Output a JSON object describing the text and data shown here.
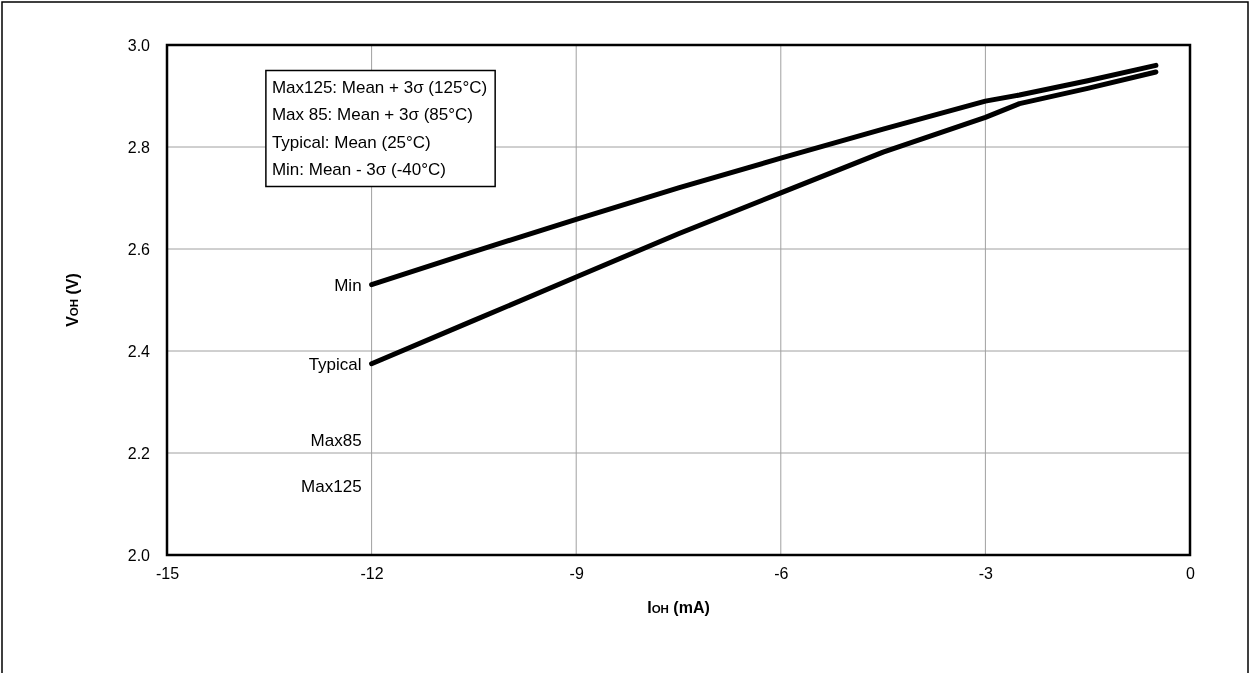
{
  "chart_data": {
    "type": "line",
    "xlabel": "I$_{OH}$ (mA)",
    "ylabel": "V$_{OH}$ (V)",
    "xlim": [
      -15,
      0
    ],
    "xticks": [
      -15,
      -12,
      -9,
      -6,
      -3,
      0
    ],
    "ylim": [
      2.0,
      3.0
    ],
    "yticks": [
      {
        "value": 2.0,
        "label": "2.0"
      },
      2.2,
      2.4,
      2.6,
      2.8,
      {
        "value": 3.0,
        "label": "3.0"
      }
    ],
    "grid": true,
    "legend": false,
    "marker": "none",
    "line_style": "solid",
    "series": [
      {
        "name": "Min",
        "color": "#000000",
        "x": [
          -12,
          -10.5,
          -9,
          -7.5,
          -6,
          -4.5,
          -3,
          -2.5,
          -1.5,
          -0.5
        ],
        "values": [
          2.53,
          2.595,
          2.658,
          2.72,
          2.778,
          2.835,
          2.89,
          2.902,
          2.93,
          2.96
        ]
      },
      {
        "name": "Typical",
        "color": "#000000",
        "x": [
          -12,
          -10.5,
          -9,
          -7.5,
          -6,
          -4.5,
          -3,
          -2.5,
          -1.5,
          -0.5
        ],
        "values": [
          2.375,
          2.46,
          2.545,
          2.63,
          2.71,
          2.79,
          2.858,
          2.885,
          2.915,
          2.947
        ]
      }
    ],
    "annotations": [
      "Max125: Mean + 3σ (125°C)",
      "Max 85: Mean + 3σ (85°C)",
      "Typical: Mean (25°C)",
      "Min: Mean - 3σ (-40°C)",
      "Max85",
      "Max125"
    ]
  }
}
